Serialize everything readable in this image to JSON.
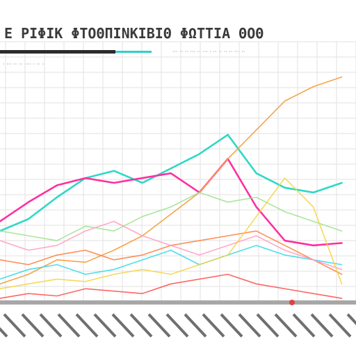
{
  "chart_data": {
    "type": "line",
    "title": "Ε ΡΙΦΙΚ ΦΤΟΘΠΙΝΚΙΒΙΘ ΦΩΤΤΙΑ ΘΟΘ",
    "subtitle_left": "· ··· ·· ·· ···· · ·· ··",
    "subtitle_right": "··· ·· ·· ··· ·· ··· · ·· ·· ·· ·· ··· ··",
    "xlim": [
      0,
      100
    ],
    "ylim": [
      0,
      100
    ],
    "grid": true,
    "x": [
      0,
      8,
      16,
      24,
      32,
      40,
      48,
      56,
      64,
      72,
      80,
      88,
      96
    ],
    "series": [
      {
        "color": "#2ed8c6",
        "values": [
          30,
          35,
          44,
          52,
          55,
          50,
          56,
          62,
          70,
          54,
          48,
          46,
          50
        ]
      },
      {
        "color": "#ff2fa0",
        "values": [
          34,
          42,
          49,
          52,
          50,
          52,
          54,
          46,
          60,
          40,
          26,
          24,
          25
        ]
      },
      {
        "color": "#f7a34a",
        "values": [
          8,
          12,
          18,
          17,
          22,
          28,
          37,
          46,
          60,
          72,
          84,
          90,
          94
        ]
      },
      {
        "color": "#ff7a3a",
        "values": [
          18,
          16,
          20,
          22,
          18,
          20,
          24,
          26,
          28,
          30,
          24,
          18,
          12
        ]
      },
      {
        "color": "#9be28c",
        "values": [
          30,
          28,
          26,
          32,
          30,
          36,
          40,
          46,
          42,
          44,
          38,
          34,
          30
        ]
      },
      {
        "color": "#2fd9e8",
        "values": [
          10,
          14,
          16,
          12,
          14,
          18,
          22,
          16,
          20,
          24,
          20,
          18,
          16
        ]
      },
      {
        "color": "#ff9ac0",
        "values": [
          26,
          22,
          24,
          30,
          34,
          28,
          24,
          20,
          24,
          28,
          22,
          18,
          14
        ]
      },
      {
        "color": "#f4d23a",
        "values": [
          6,
          8,
          10,
          9,
          12,
          14,
          12,
          16,
          20,
          36,
          52,
          40,
          8
        ]
      },
      {
        "color": "#ff4a4a",
        "values": [
          2,
          4,
          3,
          6,
          5,
          4,
          8,
          10,
          12,
          8,
          6,
          4,
          2
        ]
      }
    ]
  }
}
